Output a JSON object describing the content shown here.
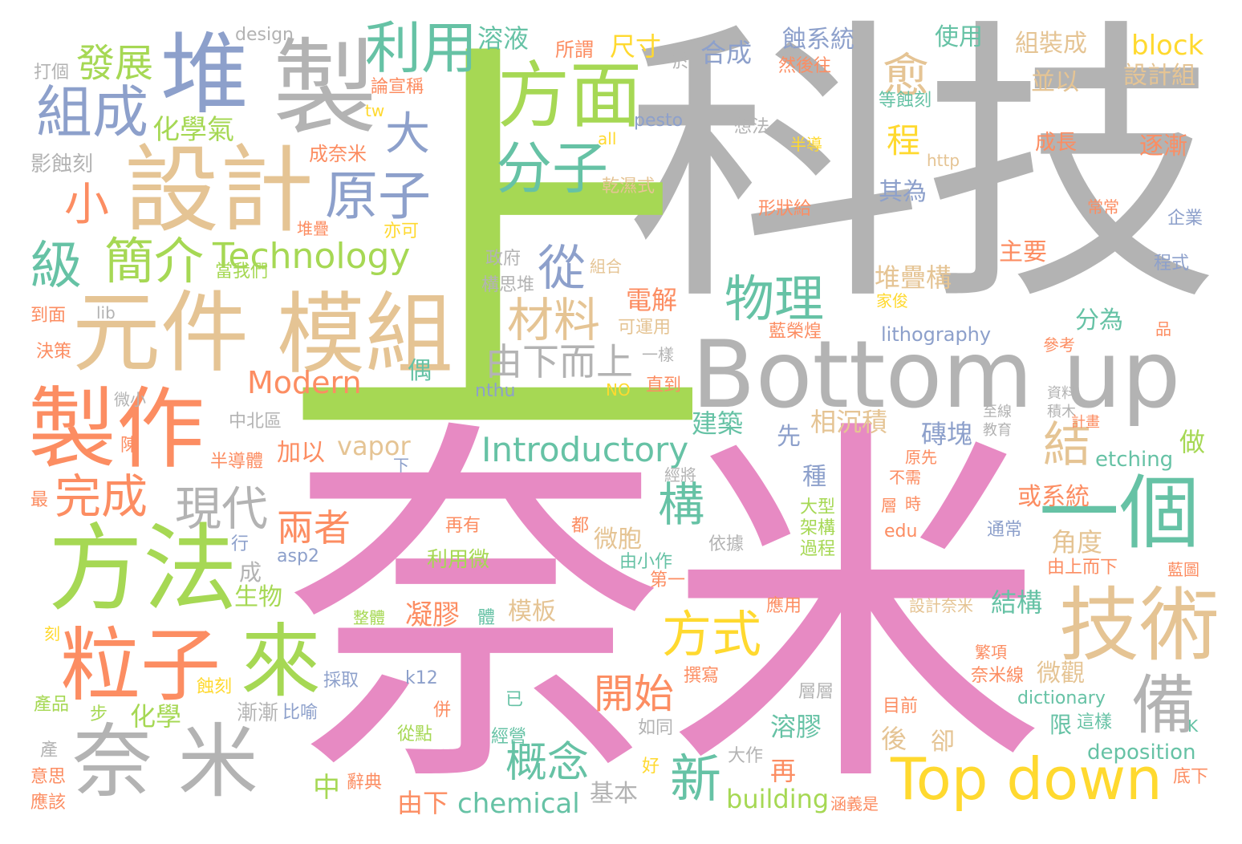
{
  "palette": {
    "gray": "#b3b3b3",
    "pink": "#e78ac3",
    "lime": "#a6d854",
    "tan": "#e5c494",
    "salmon": "#fc8d62",
    "blue": "#8da0cb",
    "teal": "#66c2a5",
    "yellow": "#ffd92f"
  },
  "words": {
    "w_keji": "科技",
    "w_shang": "上",
    "w_naimi": "奈米",
    "w_bottom_up": "Bottom up",
    "w_top_down": "Top down",
    "w_zhi": "製",
    "w_dui": "堆",
    "w_sheji": "設計",
    "w_fangmian": "方面",
    "w_liyong": "利用",
    "w_zucheng": "組成",
    "w_fazhan": "發展",
    "w_da": "大",
    "w_yu": "愈",
    "w_yuanjian": "元件",
    "w_mozu": "模組",
    "w_zhizuo": "製作",
    "w_fangfa": "方法",
    "w_lizi": "粒子",
    "w_lai": "來",
    "w_nai_mi_sep": "奈 米",
    "w_jishu": "技術",
    "w_bei": "備",
    "w_yige": "一個",
    "w_technology": "Technology",
    "w_introductory": "Introductory",
    "w_modern": "Modern",
    "w_fenzi": "分子",
    "w_yuanzi": "原子",
    "w_wuli": "物理",
    "w_cailiao": "材料",
    "w_jianjie": "簡介",
    "w_ji": "級",
    "w_xiao": "小",
    "w_cong": "從",
    "w_youxiaershang": "由下而上",
    "w_xiandai": "現代",
    "w_wancheng": "完成",
    "w_liangzhe": "兩者",
    "w_gou": "構",
    "w_fangshi": "方式",
    "w_xin": "新",
    "w_gainian": "概念",
    "w_kaishi": "開始",
    "w_jie": "結",
    "w_vapor": "vapor",
    "w_chemical": "chemical",
    "w_building": "building",
    "w_deposition": "deposition",
    "w_etching": "etching",
    "w_block": "block",
    "w_lithography": "lithography",
    "w_dictionary": "dictionary",
    "w_rongye": "溶液",
    "w_huaxueqi": "化學氣",
    "w_chicun": "尺寸",
    "w_hecheng": "合成",
    "w_shixitong": "蝕系統",
    "w_shiyong": "使用",
    "w_zuzhuangcheng": "組裝成",
    "w_bingyi": "並以",
    "w_shejizu": "設計組",
    "w_chengzhang": "成長",
    "w_zhujian": "逐漸",
    "w_cheng_big": "程",
    "w_qiwei": "其為",
    "w_zhuyao": "主要",
    "w_duidiegou": "堆疊構",
    "w_fenwei": "分為",
    "w_dianjie": "電解",
    "w_jianzhu": "建築",
    "w_xiangchenji": "相沉積",
    "w_zhuankuai": "磚塊",
    "w_zuo": "做",
    "w_huoxitong": "或系統",
    "w_jiaodu": "角度",
    "w_jiegou": "結構",
    "w_weiguan": "微觀",
    "w_xian_limit": "限",
    "w_rongjiao": "溶膠",
    "w_hou": "後",
    "w_que": "卻",
    "w_zai": "再",
    "w_jiben": "基本",
    "w_zhong_kind": "種",
    "w_xian_first": "先",
    "w_weibao": "微胞",
    "w_muban": "模板",
    "w_ningjiao": "凝膠",
    "w_shengwu": "生物",
    "w_cheng_small": "成",
    "w_jiayi": "加以",
    "w_zhong_mid": "中",
    "w_huaxue": "化學",
    "w_you_xia": "由下",
    "w_ou": "偶",
    "w_kejiyong": "可運用",
    "w_ganshishi": "乾濕式",
    "w_suowei": "所謂",
    "w_yu_at": "於",
    "w_ranhouwang": "然後往",
    "w_xiangfa": "想法",
    "w_bandao": "半導",
    "w_http": "http",
    "w_changchang": "常常",
    "w_qiye": "企業",
    "w_chengshi": "程式",
    "w_pin": "品",
    "w_cankao": "參考",
    "w_ziliao": "資料",
    "w_jimu": "積木",
    "w_jihua": "計畫",
    "w_zhixian": "至線",
    "w_jiaoyu": "教育",
    "w_yuanxian": "原先",
    "w_buxu": "不需",
    "w_ceng": "層",
    "w_shi_time": "時",
    "w_edu": "edu",
    "w_tongchang": "通常",
    "w_youshangerxia": "由上而下",
    "w_lantu": "藍圖",
    "w_dengshike": "等蝕刻",
    "w_jiazhuo": "家俊",
    "w_lanrongyu": "藍榮煌",
    "w_xingzhuanggei": "形狀給",
    "w_pesto": "pesto",
    "w_all": "all",
    "w_tw": "tw",
    "w_design": "design",
    "w_dage": "打個",
    "w_yingshike": "影蝕刻",
    "w_lunxuancheng": "論宣稱",
    "w_chengnaimi": "成奈米",
    "w_duidie": "堆疊",
    "w_yike": "亦可",
    "w_zhengfu": "政府",
    "w_zuhe": "組合",
    "w_dangwomen": "當我們",
    "w_gousidui": "構思堆",
    "w_daomian": "到面",
    "w_lib": "lib",
    "w_juece": "決策",
    "w_weixiao": "微小",
    "w_nthu": "nthu",
    "w_no": "NO",
    "w_zhidao": "直到",
    "w_yiyang": "一樣",
    "w_zhongbeiqu": "中北區",
    "w_chen": "陳",
    "w_bandaoti": "半導體",
    "w_zui": "最",
    "w_xia": "下",
    "w_jingjiang": "經將",
    "w_xing": "行",
    "w_asp2": "asp2",
    "w_dou": "都",
    "w_zaiyou": "再有",
    "w_liyongwei": "利用微",
    "w_youxiaozuo": "由小作",
    "w_yiju": "依據",
    "w_dayi": "第一",
    "w_dadayixin": "大型",
    "w_jiagou": "架構",
    "w_guocheng": "過程",
    "w_yingyong": "應用",
    "w_shejinaimi": "設計奈米",
    "w_fanxiang": "繁項",
    "w_zhengti": "整體",
    "w_ti": "體",
    "w_ke": "刻",
    "w_caiqu": "採取",
    "w_k12": "k12",
    "w_zhuanxie": "撰寫",
    "w_nami_xian": "奈米線",
    "w_chanpin": "產品",
    "w_bu": "步",
    "w_shike": "蝕刻",
    "w_jianjian": "漸漸",
    "w_biyu": "比喻",
    "w_bing": "併",
    "w_yi": "已",
    "w_congdian": "從點",
    "w_jingying": "經營",
    "w_rutong": "如同",
    "w_cengceng": "層層",
    "w_mulan": "目前",
    "w_zheyang": "這樣",
    "w_k": "K",
    "w_chan": "產",
    "w_yisi": "意思",
    "w_yinggai": "應該",
    "w_cidian": "辭典",
    "w_hao": "好",
    "w_dazuo": "大作",
    "w_dixia": "底下",
    "w_hanyishi": "涵義是"
  }
}
